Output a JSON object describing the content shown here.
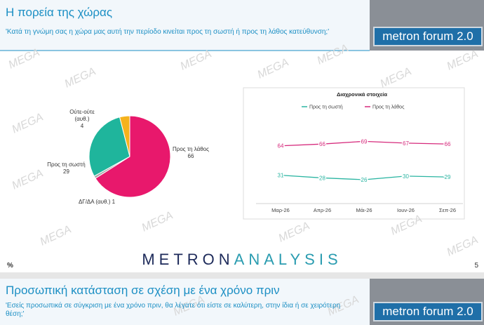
{
  "slides": [
    {
      "title": "Η πορεία της χώρας",
      "subtitle": "'Κατά τη γνώμη σας η χώρα μας αυτή την περίοδο κινείται προς τη σωστή ή προς τη λάθος κατεύθυνση;'",
      "logo": "metron forum 2.0",
      "unit": "%",
      "page": 5,
      "brand": [
        "METRON",
        "ANALYSIS"
      ]
    },
    {
      "title": "Προσωπική κατάσταση σε σχέση με ένα χρόνο πριν",
      "subtitle": "'Εσείς προσωπικά σε σύγκριση με ένα χρόνο πριν, θα λέγατε ότι είστε σε καλύτερη, στην ίδια ή σε χειρότερη θέση;'",
      "logo": "metron forum 2.0"
    }
  ],
  "watermark": "MEGA",
  "chart_data": [
    {
      "type": "pie",
      "categories": [
        "Προς τη λάθος",
        "ΔΓ/ΔΑ (αυθ.)",
        "Προς τη σωστή",
        "Ούτε-ούτε (αυθ.)"
      ],
      "values": [
        66,
        1,
        29,
        4
      ],
      "colors": [
        "#e8186c",
        "#a9a9a9",
        "#1fb59c",
        "#f5b21c"
      ]
    },
    {
      "type": "line",
      "title": "Διαχρονικά στοιχεία",
      "categories": [
        "Μαρ-26",
        "Απρ-26",
        "Μάι-26",
        "Ιουν-26",
        "Σεπ-26"
      ],
      "series": [
        {
          "name": "Προς τη σωστή",
          "color": "#2bb5a2",
          "values": [
            31,
            28,
            26,
            30,
            29
          ]
        },
        {
          "name": "Προς τη λάθος",
          "color": "#d62a7c",
          "values": [
            64,
            66,
            69,
            67,
            66
          ]
        }
      ],
      "ylim": [
        0,
        100
      ]
    }
  ]
}
